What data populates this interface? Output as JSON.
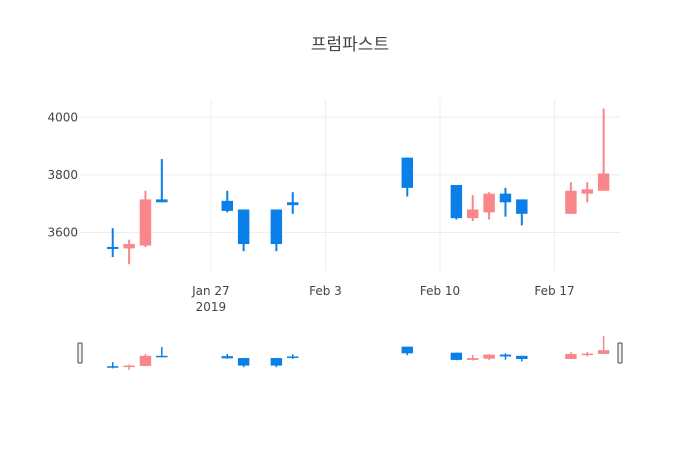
{
  "chart_data": {
    "type": "candlestick",
    "title": "프럼파스트",
    "xlabel": "",
    "ylabel": "",
    "ylim": [
      3470,
      4060
    ],
    "x_range": [
      "2019-01-19",
      "2019-02-21"
    ],
    "grid": true,
    "x_ticks": [
      {
        "date": "2019-01-27",
        "label": "Jan 27",
        "sublabel": "2019"
      },
      {
        "date": "2019-02-03",
        "label": "Feb 3",
        "sublabel": ""
      },
      {
        "date": "2019-02-10",
        "label": "Feb 10",
        "sublabel": ""
      },
      {
        "date": "2019-02-17",
        "label": "Feb 17",
        "sublabel": ""
      }
    ],
    "y_ticks": [
      {
        "value": 3600,
        "label": "3600"
      },
      {
        "value": 3800,
        "label": "3800"
      },
      {
        "value": 4000,
        "label": "4000"
      }
    ],
    "increasing_color": "#f9868a",
    "decreasing_color": "#0a7fe8",
    "ohlc": [
      {
        "date": "2019-01-21",
        "open": 3550,
        "high": 3615,
        "low": 3515,
        "close": 3545
      },
      {
        "date": "2019-01-22",
        "open": 3545,
        "high": 3575,
        "low": 3490,
        "close": 3560
      },
      {
        "date": "2019-01-23",
        "open": 3555,
        "high": 3745,
        "low": 3550,
        "close": 3715
      },
      {
        "date": "2019-01-24",
        "open": 3715,
        "high": 3855,
        "low": 3705,
        "close": 3705
      },
      {
        "date": "2019-01-28",
        "open": 3710,
        "high": 3745,
        "low": 3670,
        "close": 3675
      },
      {
        "date": "2019-01-29",
        "open": 3680,
        "high": 3680,
        "low": 3535,
        "close": 3560
      },
      {
        "date": "2019-01-31",
        "open": 3680,
        "high": 3680,
        "low": 3535,
        "close": 3560
      },
      {
        "date": "2019-02-01",
        "open": 3705,
        "high": 3740,
        "low": 3665,
        "close": 3695
      },
      {
        "date": "2019-02-08",
        "open": 3860,
        "high": 3860,
        "low": 3725,
        "close": 3755
      },
      {
        "date": "2019-02-11",
        "open": 3765,
        "high": 3765,
        "low": 3645,
        "close": 3650
      },
      {
        "date": "2019-02-12",
        "open": 3650,
        "high": 3730,
        "low": 3640,
        "close": 3680
      },
      {
        "date": "2019-02-13",
        "open": 3670,
        "high": 3740,
        "low": 3645,
        "close": 3735
      },
      {
        "date": "2019-02-14",
        "open": 3735,
        "high": 3755,
        "low": 3655,
        "close": 3705
      },
      {
        "date": "2019-02-15",
        "open": 3715,
        "high": 3715,
        "low": 3625,
        "close": 3665
      },
      {
        "date": "2019-02-18",
        "open": 3665,
        "high": 3775,
        "low": 3665,
        "close": 3745
      },
      {
        "date": "2019-02-19",
        "open": 3735,
        "high": 3775,
        "low": 3705,
        "close": 3750
      },
      {
        "date": "2019-02-20",
        "open": 3745,
        "high": 4030,
        "low": 3745,
        "close": 3805
      }
    ]
  }
}
